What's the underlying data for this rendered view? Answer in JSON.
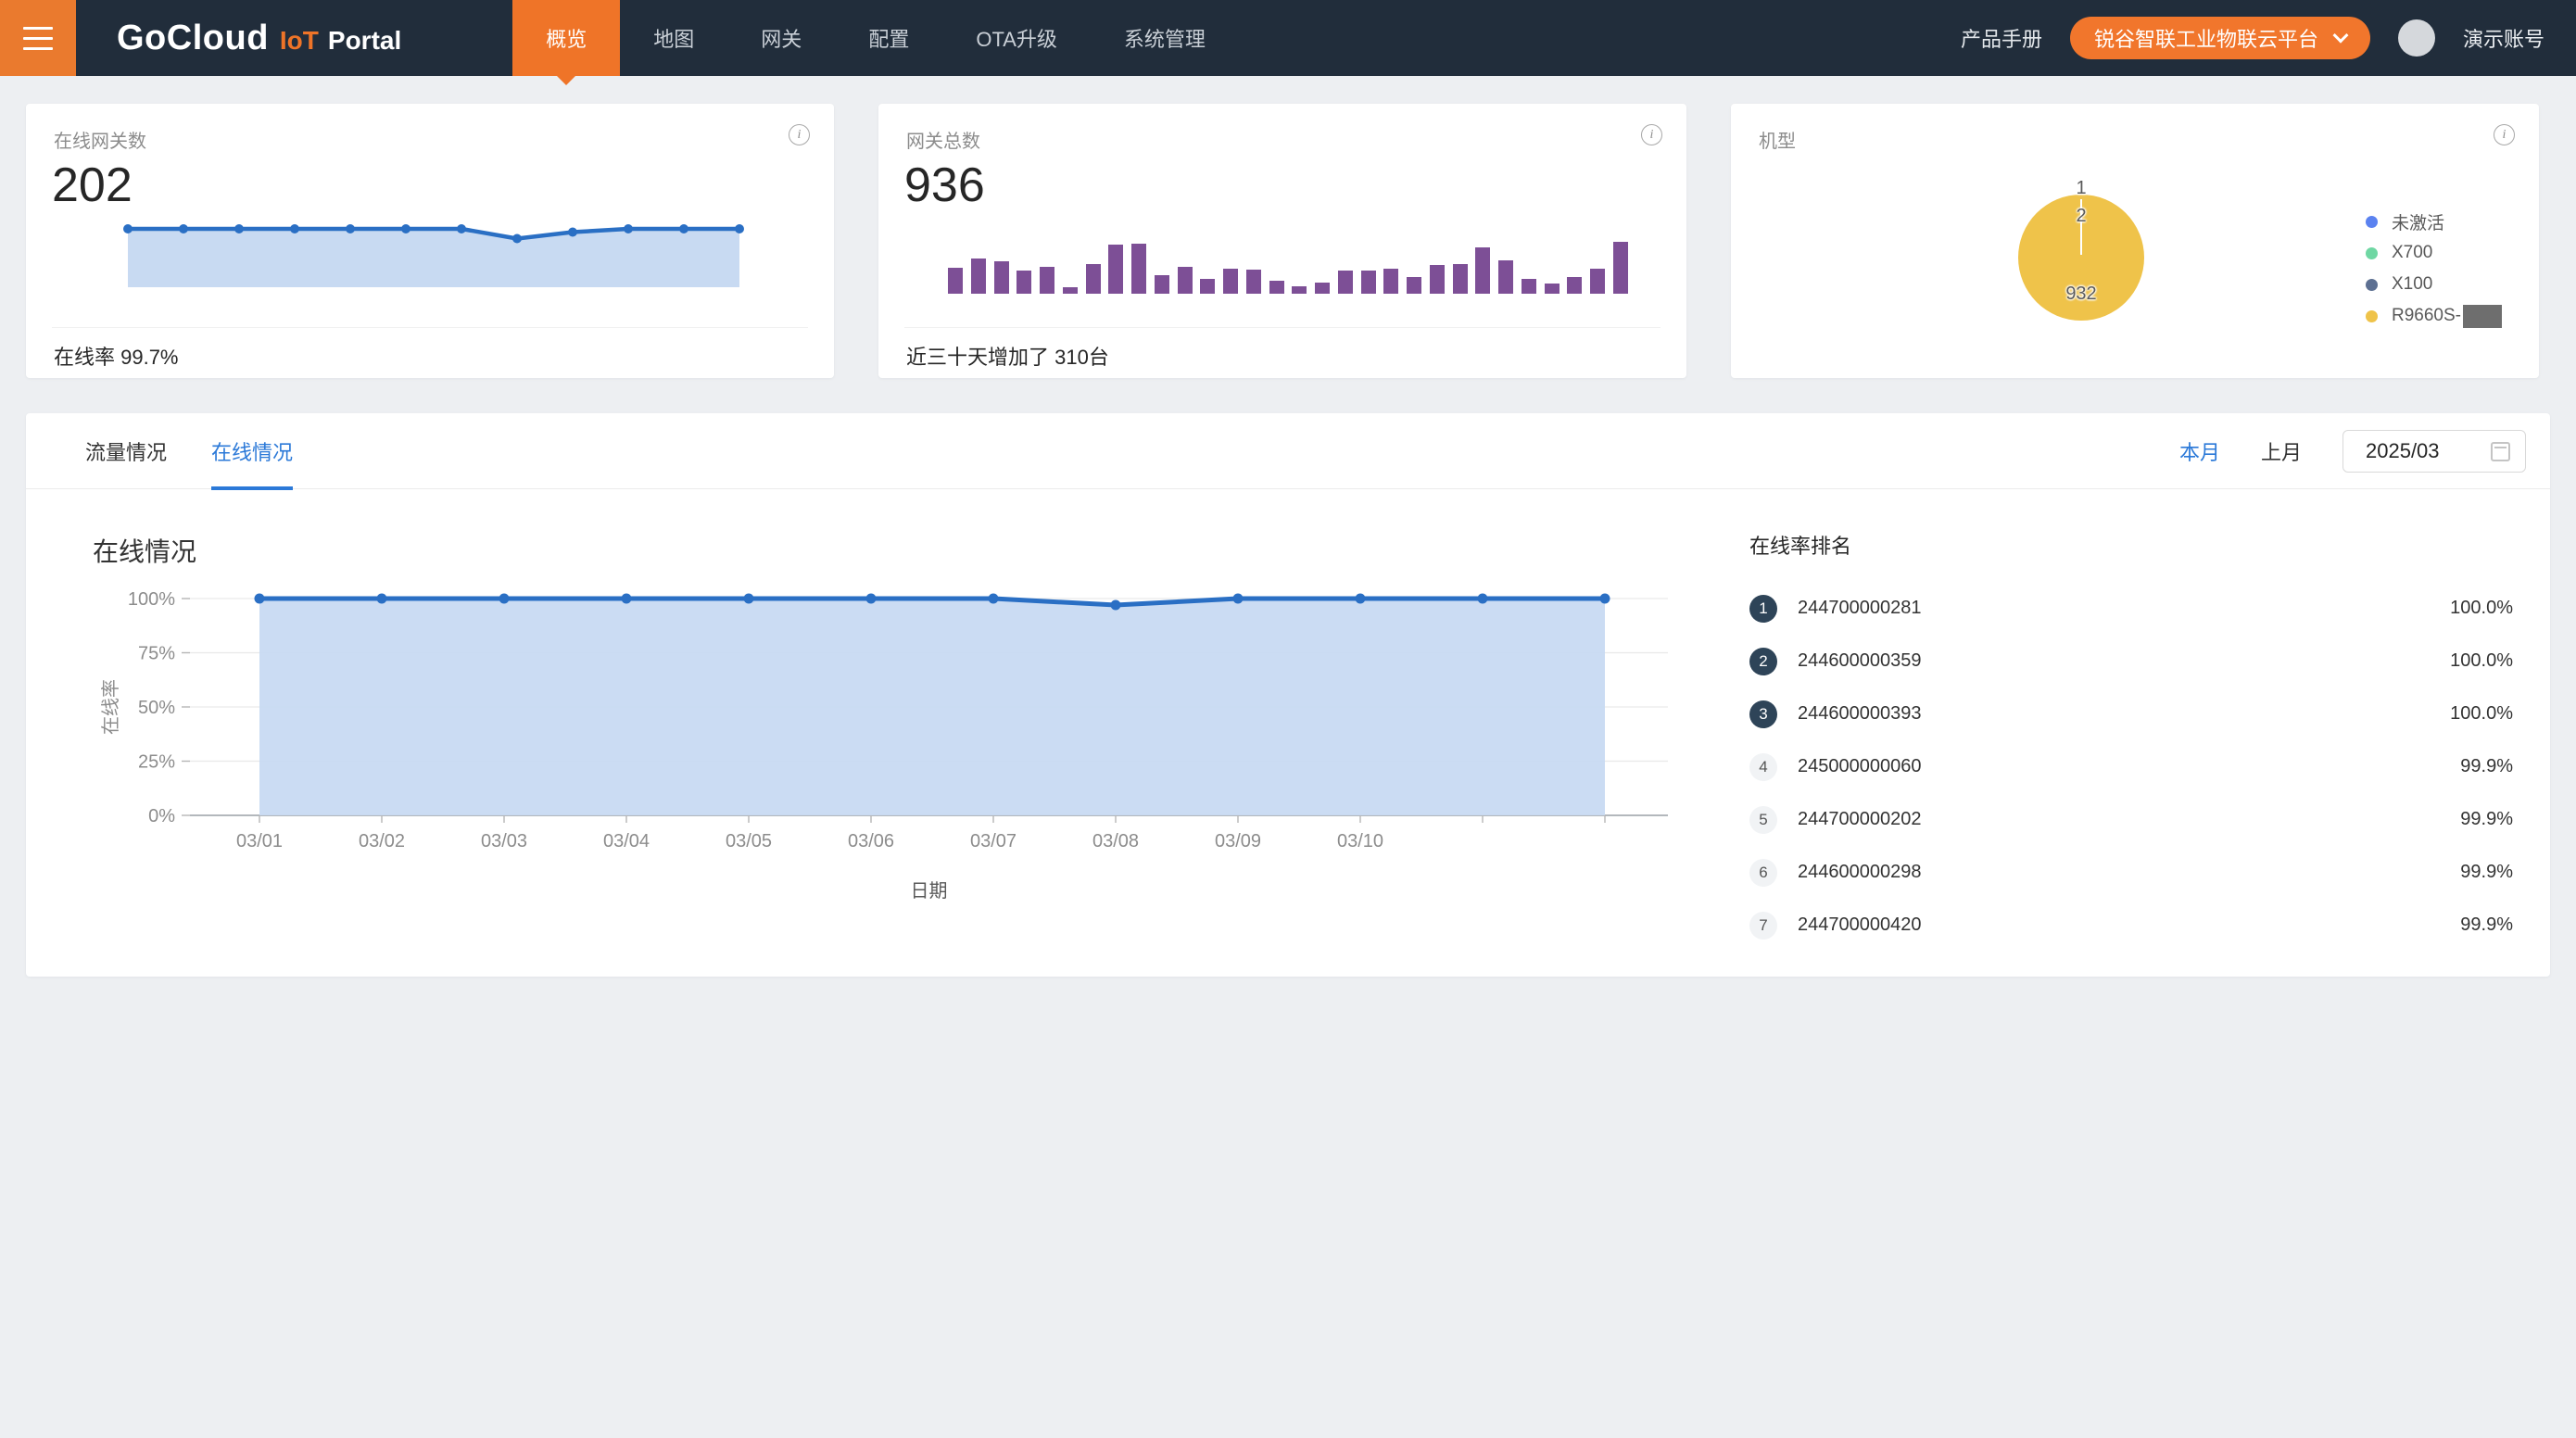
{
  "colors": {
    "accent_orange": "#ef7428",
    "accent_blue": "#2b79d8",
    "line_blue": "#2a6fc4",
    "area_fill_blue": "#c8daf2",
    "bar_purple": "#7d4f96",
    "pie_yellow": "#efc34a",
    "rank_badge_dark": "#2e4458",
    "nav_dark": "#212d3b"
  },
  "nav": {
    "logo_gocloud": "GoCloud",
    "logo_iot": "IoT",
    "logo_portal": "Portal",
    "items": [
      {
        "label": "概览",
        "active": true
      },
      {
        "label": "地图",
        "active": false
      },
      {
        "label": "网关",
        "active": false
      },
      {
        "label": "配置",
        "active": false
      },
      {
        "label": "OTA升级",
        "active": false
      },
      {
        "label": "系统管理",
        "active": false
      }
    ],
    "product_manual": "产品手册",
    "tenant_selector": "锐谷智联工业物联云平台",
    "account_name": "演示账号"
  },
  "cards": {
    "online": {
      "title": "在线网关数",
      "value": "202",
      "footer": "在线率 99.7%"
    },
    "total": {
      "title": "网关总数",
      "value": "936",
      "footer": "近三十天增加了 310台"
    },
    "models": {
      "title": "机型",
      "legend": [
        {
          "label": "未激活",
          "color": "#5b82f0",
          "redacted": false
        },
        {
          "label": "X700",
          "color": "#6fd7a3",
          "redacted": false
        },
        {
          "label": "X100",
          "color": "#5d7092",
          "redacted": false
        },
        {
          "label": "R9660S-",
          "color": "#efc34a",
          "redacted": true
        }
      ]
    }
  },
  "panel": {
    "tabs": [
      {
        "label": "流量情况",
        "active": false
      },
      {
        "label": "在线情况",
        "active": true
      }
    ],
    "this_month": "本月",
    "last_month": "上月",
    "date_value": "2025/03"
  },
  "ranking": {
    "title": "在线率排名",
    "rows": [
      {
        "rank": "1",
        "id": "244700000281",
        "rate": "100.0%"
      },
      {
        "rank": "2",
        "id": "244600000359",
        "rate": "100.0%"
      },
      {
        "rank": "3",
        "id": "244600000393",
        "rate": "100.0%"
      },
      {
        "rank": "4",
        "id": "245000000060",
        "rate": "99.9%"
      },
      {
        "rank": "5",
        "id": "244700000202",
        "rate": "99.9%"
      },
      {
        "rank": "6",
        "id": "244600000298",
        "rate": "99.9%"
      },
      {
        "rank": "7",
        "id": "244700000420",
        "rate": "99.9%"
      }
    ]
  },
  "chart_data": [
    {
      "id": "online-gateways-sparkline",
      "type": "area",
      "axis": "none",
      "values": [
        202,
        202,
        202,
        202,
        202,
        202,
        202,
        199,
        201,
        202,
        202,
        202
      ],
      "color": "#2a6fc4",
      "fill": "#c8daf2"
    },
    {
      "id": "total-gateways-bars",
      "type": "bar",
      "axis": "none",
      "values_relative_pct": [
        50,
        68,
        62,
        45,
        52,
        12,
        57,
        95,
        97,
        35,
        52,
        28,
        48,
        46,
        25,
        15,
        22,
        45,
        45,
        48,
        32,
        55,
        58,
        90,
        65,
        28,
        20,
        32,
        48,
        100
      ],
      "color": "#7d4f96"
    },
    {
      "id": "models-pie",
      "type": "pie",
      "legend": [
        "未激活",
        "X700",
        "X100",
        "R9660S-"
      ],
      "visible_labels": [
        "1",
        "2",
        "932"
      ],
      "dominant_value": 932,
      "dominant_color": "#efc34a",
      "legend_position": "right"
    },
    {
      "id": "online-rate-by-day",
      "type": "area",
      "title": "在线情况",
      "xlabel": "日期",
      "ylabel": "在线率",
      "x": [
        "03/01",
        "03/02",
        "03/03",
        "03/04",
        "03/05",
        "03/06",
        "03/07",
        "03/08",
        "03/09",
        "03/10",
        "",
        ""
      ],
      "values": [
        100,
        100,
        100,
        100,
        100,
        100,
        100,
        97,
        100,
        100,
        100,
        100
      ],
      "ylim": [
        0,
        100
      ],
      "yticks": [
        {
          "label": "0%",
          "value": 0
        },
        {
          "label": "25%",
          "value": 25
        },
        {
          "label": "50%",
          "value": 50
        },
        {
          "label": "75%",
          "value": 75
        },
        {
          "label": "100%",
          "value": 100
        }
      ],
      "grid": true,
      "line_color": "#2a6fc4",
      "fill_color": "#c8daf2"
    }
  ]
}
